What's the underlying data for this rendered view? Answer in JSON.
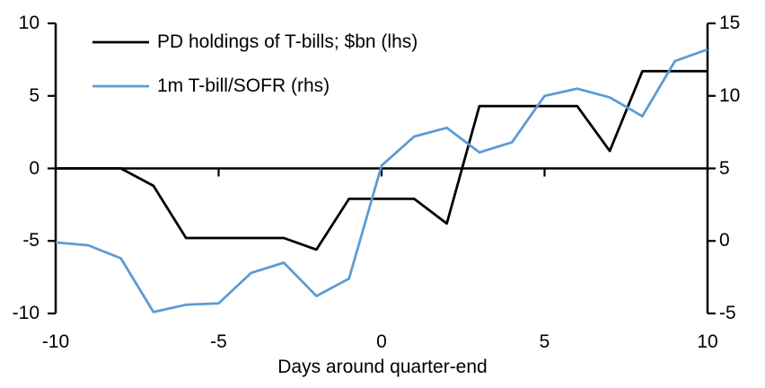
{
  "chart_data": {
    "type": "line",
    "title": "",
    "xlabel": "Days around quarter-end",
    "grid": false,
    "legend_position": "top-left",
    "x": [
      -10,
      -9,
      -8,
      -7,
      -6,
      -5,
      -4,
      -3,
      -2,
      -1,
      0,
      1,
      2,
      3,
      4,
      5,
      6,
      7,
      8,
      9,
      10
    ],
    "x_axis": {
      "min": -10,
      "max": 10,
      "ticks": [
        -10,
        -5,
        0,
        5,
        10
      ]
    },
    "left_axis": {
      "min": -10,
      "max": 10,
      "ticks": [
        10,
        5,
        0,
        -5,
        -10
      ]
    },
    "right_axis": {
      "min": -5,
      "max": 15,
      "ticks": [
        15,
        10,
        5,
        0,
        -5
      ]
    },
    "series": [
      {
        "name": "PD holdings of T-bills; $bn (lhs)",
        "axis": "lhs",
        "color": "#000000",
        "values": [
          0,
          0,
          0,
          -1.2,
          -4.8,
          -4.8,
          -4.8,
          -4.8,
          -5.6,
          -2.1,
          -2.1,
          -2.1,
          -3.8,
          4.3,
          4.3,
          4.3,
          4.3,
          1.2,
          6.7,
          6.7,
          6.7
        ]
      },
      {
        "name": "1m T-bill/SOFR (rhs)",
        "axis": "rhs",
        "color": "#5B9BD5",
        "values": [
          -0.1,
          -0.3,
          -1.2,
          -4.9,
          -4.4,
          -4.3,
          -2.2,
          -1.5,
          -3.8,
          -2.6,
          5.2,
          7.2,
          7.8,
          6.1,
          6.8,
          10.0,
          10.5,
          9.9,
          8.6,
          12.4,
          13.2
        ]
      }
    ]
  }
}
